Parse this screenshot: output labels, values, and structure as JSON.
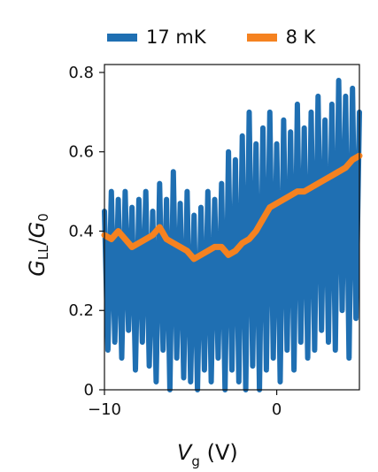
{
  "chart_data": {
    "type": "line",
    "title": "",
    "xlabel": {
      "symbol": "V",
      "subscript": "g",
      "unit": "(V)"
    },
    "ylabel": {
      "numerator": "G",
      "numerator_sub": "LL",
      "denominator": "G",
      "denominator_sub": "0"
    },
    "xlim": [
      -10,
      4.8
    ],
    "ylim": [
      0,
      0.82
    ],
    "xticks": [
      -10,
      0
    ],
    "xtick_labels": [
      "−10",
      "0"
    ],
    "yticks": [
      0,
      0.2,
      0.4,
      0.6,
      0.8
    ],
    "ytick_labels": [
      "0",
      "0.2",
      "0.4",
      "0.6",
      "0.8"
    ],
    "grid": false,
    "legend_position": "top",
    "series": [
      {
        "name": "17 mK",
        "color": "#1f6fb2",
        "x": [
          -10.0,
          -9.8,
          -9.6,
          -9.4,
          -9.2,
          -9.0,
          -8.8,
          -8.6,
          -8.4,
          -8.2,
          -8.0,
          -7.8,
          -7.6,
          -7.4,
          -7.2,
          -7.0,
          -6.8,
          -6.6,
          -6.4,
          -6.2,
          -6.0,
          -5.8,
          -5.6,
          -5.4,
          -5.2,
          -5.0,
          -4.8,
          -4.6,
          -4.4,
          -4.2,
          -4.0,
          -3.8,
          -3.6,
          -3.4,
          -3.2,
          -3.0,
          -2.8,
          -2.6,
          -2.4,
          -2.2,
          -2.0,
          -1.8,
          -1.6,
          -1.4,
          -1.2,
          -1.0,
          -0.8,
          -0.6,
          -0.4,
          -0.2,
          0.0,
          0.2,
          0.4,
          0.6,
          0.8,
          1.0,
          1.2,
          1.4,
          1.6,
          1.8,
          2.0,
          2.2,
          2.4,
          2.6,
          2.8,
          3.0,
          3.2,
          3.4,
          3.6,
          3.8,
          4.0,
          4.2,
          4.4,
          4.6,
          4.8
        ],
        "y": [
          0.45,
          0.1,
          0.5,
          0.12,
          0.48,
          0.08,
          0.5,
          0.15,
          0.46,
          0.05,
          0.48,
          0.12,
          0.5,
          0.06,
          0.45,
          0.02,
          0.52,
          0.1,
          0.48,
          0.0,
          0.55,
          0.08,
          0.47,
          0.03,
          0.5,
          0.02,
          0.44,
          0.0,
          0.46,
          0.05,
          0.5,
          0.02,
          0.48,
          0.08,
          0.52,
          0.0,
          0.6,
          0.05,
          0.58,
          0.02,
          0.64,
          0.0,
          0.7,
          0.06,
          0.62,
          0.0,
          0.66,
          0.05,
          0.7,
          0.08,
          0.62,
          0.02,
          0.68,
          0.1,
          0.65,
          0.05,
          0.72,
          0.12,
          0.66,
          0.08,
          0.7,
          0.1,
          0.74,
          0.15,
          0.68,
          0.12,
          0.72,
          0.1,
          0.78,
          0.2,
          0.74,
          0.08,
          0.76,
          0.18,
          0.7
        ]
      },
      {
        "name": "8 K",
        "color": "#f58220",
        "x": [
          -10.0,
          -9.6,
          -9.2,
          -8.8,
          -8.4,
          -8.0,
          -7.6,
          -7.2,
          -6.8,
          -6.4,
          -6.0,
          -5.6,
          -5.2,
          -4.8,
          -4.4,
          -4.0,
          -3.6,
          -3.2,
          -2.8,
          -2.4,
          -2.0,
          -1.6,
          -1.2,
          -0.8,
          -0.4,
          0.0,
          0.4,
          0.8,
          1.2,
          1.6,
          2.0,
          2.4,
          2.8,
          3.2,
          3.6,
          4.0,
          4.4,
          4.8
        ],
        "y": [
          0.39,
          0.38,
          0.4,
          0.38,
          0.36,
          0.37,
          0.38,
          0.39,
          0.41,
          0.38,
          0.37,
          0.36,
          0.35,
          0.33,
          0.34,
          0.35,
          0.36,
          0.36,
          0.34,
          0.35,
          0.37,
          0.38,
          0.4,
          0.43,
          0.46,
          0.47,
          0.48,
          0.49,
          0.5,
          0.5,
          0.51,
          0.52,
          0.53,
          0.54,
          0.55,
          0.56,
          0.58,
          0.59
        ]
      }
    ]
  }
}
